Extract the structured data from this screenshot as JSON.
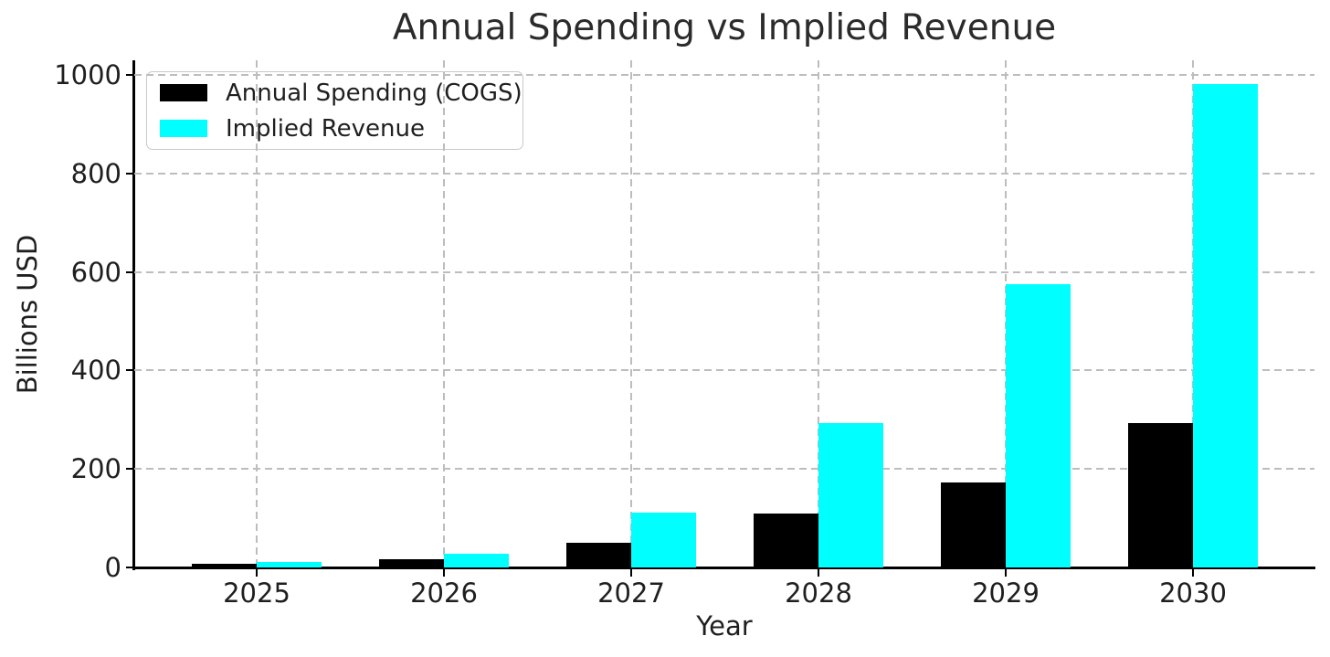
{
  "chart_data": {
    "type": "bar",
    "title": "Annual Spending vs Implied Revenue",
    "xlabel": "Year",
    "ylabel": "Billions USD",
    "categories": [
      "2025",
      "2026",
      "2027",
      "2028",
      "2029",
      "2030"
    ],
    "series": [
      {
        "name": "Annual Spending (COGS)",
        "color": "#000000",
        "values": [
          7,
          16,
          50,
          110,
          172,
          294
        ]
      },
      {
        "name": "Implied Revenue",
        "color": "#00ffff",
        "values": [
          12,
          28,
          112,
          294,
          576,
          982
        ]
      }
    ],
    "yticks": [
      0,
      200,
      400,
      600,
      800,
      1000
    ],
    "ylim": [
      0,
      1030
    ],
    "grid": "dashed-both-axes",
    "grid_color": "#bdbdbd",
    "legend_position": "upper-left",
    "spine_color": "#000000"
  }
}
